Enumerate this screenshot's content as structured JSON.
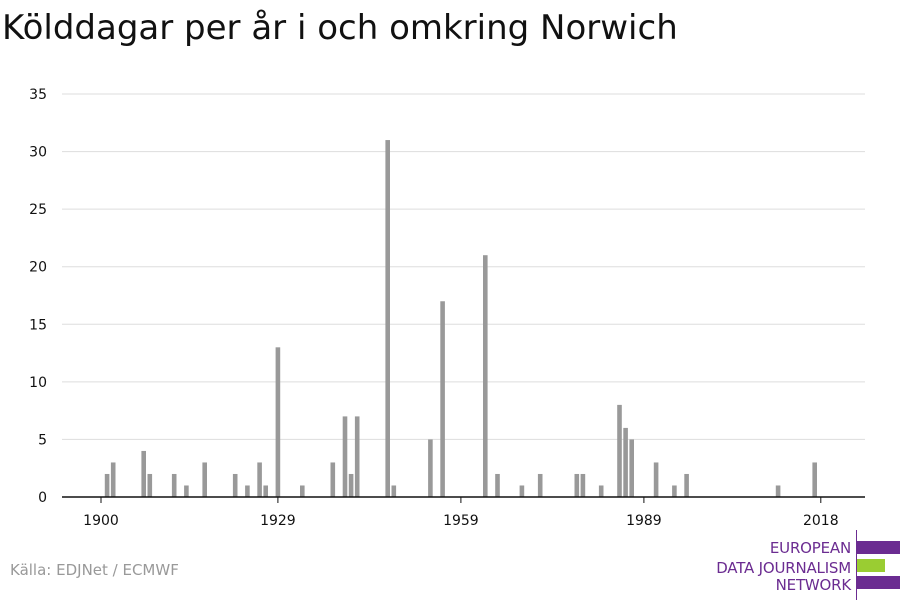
{
  "chart_data": {
    "type": "bar",
    "title": "Kölddagar per år i och omkring Norwich",
    "xlabel": "",
    "ylabel": "",
    "xlim": [
      1900,
      2021
    ],
    "ylim": [
      0,
      35
    ],
    "yticks": [
      0,
      5,
      10,
      15,
      20,
      25,
      30,
      35
    ],
    "xticks": [
      1900,
      1929,
      1959,
      1989,
      2018
    ],
    "grid": true,
    "bar_color": "#999999",
    "grid_color": "#dddddd",
    "x": [
      1901,
      1902,
      1907,
      1908,
      1912,
      1914,
      1917,
      1922,
      1924,
      1926,
      1927,
      1929,
      1933,
      1938,
      1940,
      1941,
      1942,
      1947,
      1948,
      1954,
      1956,
      1963,
      1965,
      1969,
      1972,
      1978,
      1979,
      1982,
      1985,
      1986,
      1987,
      1991,
      1994,
      1996,
      2011,
      2017
    ],
    "values": [
      2,
      3,
      4,
      2,
      2,
      1,
      3,
      2,
      1,
      3,
      1,
      13,
      1,
      3,
      7,
      2,
      7,
      31,
      1,
      5,
      17,
      21,
      2,
      1,
      2,
      2,
      2,
      1,
      8,
      6,
      5,
      3,
      1,
      2,
      1,
      3
    ]
  },
  "source": "Källa: EDJNet / ECMWF",
  "logo": {
    "lines": [
      "European",
      "Data Journalism",
      "Network"
    ],
    "colors": [
      "#6b2c91",
      "#9acd32",
      "#6b2c91"
    ]
  }
}
